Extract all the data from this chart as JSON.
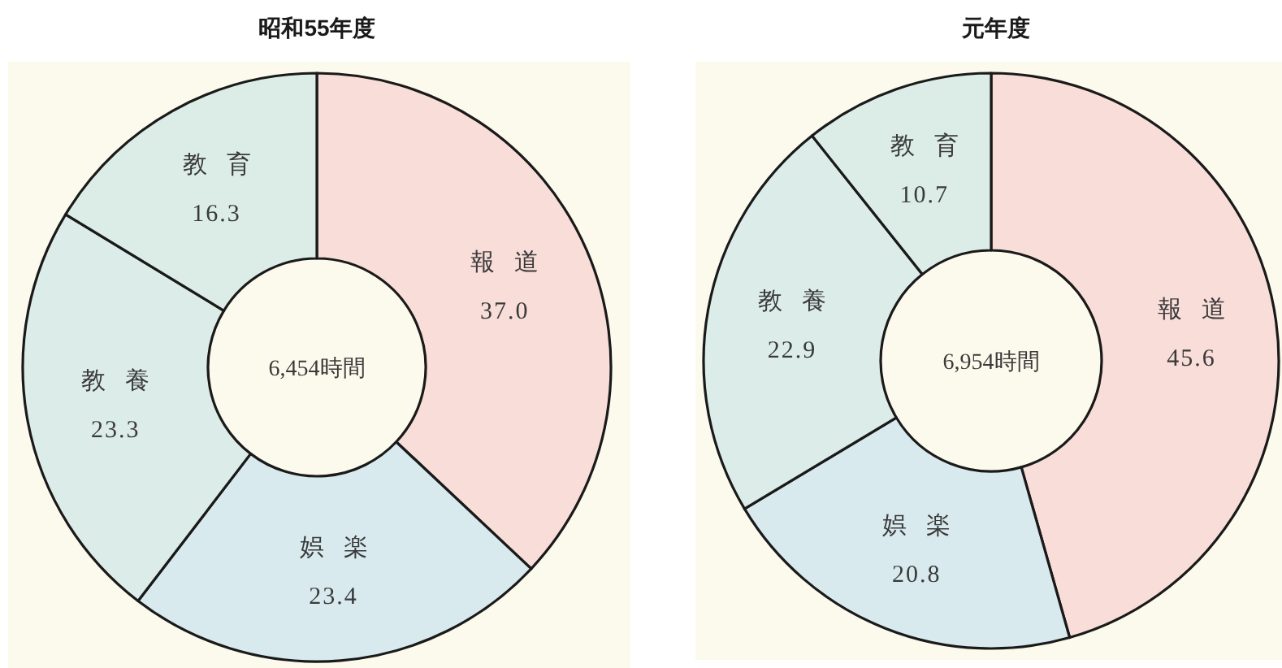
{
  "chart_data": [
    {
      "type": "donut",
      "title": "昭和55年度",
      "categories": [
        "報道",
        "娯楽",
        "教養",
        "教育"
      ],
      "values": [
        37.0,
        23.4,
        23.3,
        16.3
      ],
      "value_labels": [
        "37.0",
        "23.4",
        "23.3",
        "16.3"
      ],
      "colors": [
        "#f9ddd8",
        "#d8eaee",
        "#dcece8",
        "#dcede8"
      ],
      "annotations": [
        "6,454時間"
      ]
    },
    {
      "type": "donut",
      "title": "元年度",
      "categories": [
        "報道",
        "娯楽",
        "教養",
        "教育"
      ],
      "values": [
        45.6,
        20.8,
        22.9,
        10.7
      ],
      "value_labels": [
        "45.6",
        "20.8",
        "22.9",
        "10.7"
      ],
      "colors": [
        "#f9ddd8",
        "#d8eaee",
        "#dcece8",
        "#dcede8"
      ],
      "annotations": [
        "6,954時間"
      ]
    }
  ]
}
